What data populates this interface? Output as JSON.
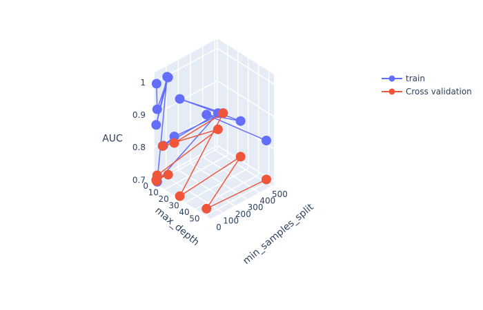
{
  "chart_data": {
    "type": "scatter3d",
    "axes": {
      "x": {
        "title": "min_samples_split",
        "ticks": [
          0,
          100,
          200,
          300,
          400,
          500
        ],
        "range": [
          0,
          520
        ]
      },
      "y": {
        "title": "max_depth",
        "ticks": [
          0,
          10,
          20,
          30,
          40,
          50
        ],
        "range": [
          0,
          55
        ]
      },
      "z": {
        "title": "AUC",
        "ticks": [
          0.7,
          0.8,
          0.9,
          1
        ],
        "range": [
          0.69,
          1.03
        ]
      }
    },
    "legend": {
      "placement": "top-right"
    },
    "series": [
      {
        "name": "train",
        "color": "#636efa",
        "mode": "lines+markers",
        "points": [
          {
            "x": 5,
            "y": 2,
            "z": 1.0
          },
          {
            "x": 10,
            "y": 2,
            "z": 0.92
          },
          {
            "x": 100,
            "y": 2,
            "z": 1.0
          },
          {
            "x": 10,
            "y": 1,
            "z": 0.87
          },
          {
            "x": 100,
            "y": 1,
            "z": 1.0
          },
          {
            "x": 2,
            "y": 3,
            "z": 0.7
          },
          {
            "x": 500,
            "y": 3,
            "z": 0.81
          },
          {
            "x": 5,
            "y": 8,
            "z": 0.82
          },
          {
            "x": 10,
            "y": 8,
            "z": 0.82
          },
          {
            "x": 100,
            "y": 8,
            "z": 0.83
          },
          {
            "x": 500,
            "y": 8,
            "z": 0.82
          },
          {
            "x": 2,
            "y": 25,
            "z": 1.0
          },
          {
            "x": 500,
            "y": 25,
            "z": 0.83
          },
          {
            "x": 10,
            "y": 50,
            "z": 1.0
          },
          {
            "x": 500,
            "y": 50,
            "z": 0.82
          }
        ]
      },
      {
        "name": "Cross validation",
        "color": "#ef553b",
        "mode": "lines+markers",
        "points": [
          {
            "x": 5,
            "y": 2,
            "z": 0.7
          },
          {
            "x": 10,
            "y": 2,
            "z": 0.71
          },
          {
            "x": 100,
            "y": 2,
            "z": 0.7
          },
          {
            "x": 10,
            "y": 1,
            "z": 0.7
          },
          {
            "x": 2,
            "y": 3,
            "z": 0.72
          },
          {
            "x": 500,
            "y": 3,
            "z": 0.76
          },
          {
            "x": 5,
            "y": 8,
            "z": 0.82
          },
          {
            "x": 100,
            "y": 8,
            "z": 0.81
          },
          {
            "x": 500,
            "y": 8,
            "z": 0.82
          },
          {
            "x": 2,
            "y": 25,
            "z": 0.7
          },
          {
            "x": 500,
            "y": 25,
            "z": 0.72
          },
          {
            "x": 10,
            "y": 50,
            "z": 0.71
          },
          {
            "x": 500,
            "y": 50,
            "z": 0.7
          }
        ]
      }
    ]
  }
}
